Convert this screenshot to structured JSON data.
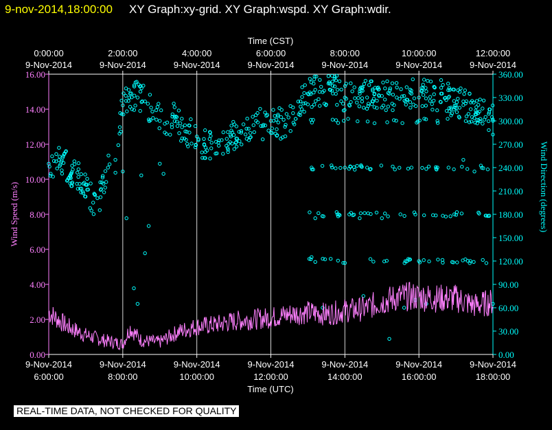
{
  "header": {
    "datetime": "9-nov-2014,18:00:00",
    "graphs": "XY Graph:xy-grid.  XY Graph:wspd.  XY Graph:wdir."
  },
  "notice": "REAL-TIME DATA, NOT CHECKED FOR QUALITY",
  "colors": {
    "background": "#000000",
    "speed": "#ff80ff",
    "direction": "#00ffff",
    "grid": "#ffffff",
    "header_date": "#ffff00"
  },
  "chart_data": {
    "type": "scatter",
    "title": "",
    "top_axis": {
      "title": "Time (CST)",
      "ticks": [
        {
          "x": 0,
          "time": "0:00:00",
          "date": "9-Nov-2014"
        },
        {
          "x": 2,
          "time": "2:00:00",
          "date": "9-Nov-2014"
        },
        {
          "x": 4,
          "time": "4:00:00",
          "date": "9-Nov-2014"
        },
        {
          "x": 6,
          "time": "6:00:00",
          "date": "9-Nov-2014"
        },
        {
          "x": 8,
          "time": "8:00:00",
          "date": "9-Nov-2014"
        },
        {
          "x": 10,
          "time": "10:00:00",
          "date": "9-Nov-2014"
        },
        {
          "x": 12,
          "time": "12:00:00",
          "date": "9-Nov-2014"
        }
      ]
    },
    "bottom_axis": {
      "title": "Time (UTC)",
      "ticks": [
        {
          "x": 0,
          "date": "9-Nov-2014",
          "time": "6:00:00"
        },
        {
          "x": 2,
          "date": "9-Nov-2014",
          "time": "8:00:00"
        },
        {
          "x": 4,
          "date": "9-Nov-2014",
          "time": "10:00:00"
        },
        {
          "x": 6,
          "date": "9-Nov-2014",
          "time": "12:00:00"
        },
        {
          "x": 8,
          "date": "9-Nov-2014",
          "time": "14:00:00"
        },
        {
          "x": 10,
          "date": "9-Nov-2014",
          "time": "16:00:00"
        },
        {
          "x": 12,
          "date": "9-Nov-2014",
          "time": "18:00:00"
        }
      ]
    },
    "xlim": [
      0,
      12
    ],
    "left_axis": {
      "title": "Wind Speed (m/s)",
      "ylim": [
        0,
        16
      ],
      "ticks": [
        "0.00",
        "2.00",
        "4.00",
        "6.00",
        "8.00",
        "10.00",
        "12.00",
        "14.00",
        "16.00"
      ]
    },
    "right_axis": {
      "title": "Wind Direction (degrees)",
      "ylim": [
        0,
        360
      ],
      "ticks": [
        "0.00",
        "30.00",
        "60.00",
        "90.00",
        "120.00",
        "150.00",
        "180.00",
        "210.00",
        "240.00",
        "270.00",
        "300.00",
        "330.00",
        "360.00"
      ]
    },
    "series": [
      {
        "name": "wspd",
        "kind": "line",
        "axis": "left",
        "x": [
          0,
          0.5,
          1,
          1.5,
          2,
          2.2,
          2.5,
          3,
          3.5,
          4,
          4.5,
          5,
          5.5,
          6,
          6.5,
          7,
          7.5,
          8,
          8.5,
          9,
          9.5,
          10,
          10.5,
          11,
          11.5,
          12
        ],
        "values": [
          2.4,
          1.6,
          1.1,
          0.8,
          0.6,
          1.5,
          0.8,
          0.7,
          1.3,
          1.6,
          1.7,
          1.9,
          2.0,
          2.1,
          2.3,
          2.4,
          2.3,
          2.5,
          2.6,
          3.0,
          3.3,
          3.3,
          3.2,
          3.2,
          2.8,
          3.0
        ]
      },
      {
        "name": "wdir",
        "kind": "scatter",
        "axis": "right",
        "x": [
          0,
          0.2,
          0.4,
          0.6,
          0.8,
          1.0,
          1.2,
          1.4,
          1.6,
          1.8,
          2.0,
          2.2,
          2.4,
          2.6,
          2.8,
          3.0,
          3.2,
          3.4,
          3.6,
          3.8,
          4.0,
          4.2,
          4.4,
          4.6,
          4.8,
          5.0,
          5.2,
          5.4,
          5.6,
          5.8,
          6.0,
          6.2,
          6.4,
          6.6,
          6.8,
          7.0,
          7.2,
          7.4,
          7.6,
          7.8,
          8.0,
          8.2,
          8.4,
          8.6,
          8.8,
          9.0,
          9.2,
          9.4,
          9.6,
          9.8,
          10.0,
          10.2,
          10.4,
          10.6,
          10.8,
          11.0,
          11.2,
          11.4,
          11.6,
          11.8,
          12.0
        ],
        "values": [
          245,
          248,
          246,
          232,
          228,
          218,
          195,
          202,
          240,
          250,
          320,
          335,
          330,
          325,
          312,
          300,
          298,
          305,
          292,
          285,
          280,
          270,
          272,
          275,
          268,
          282,
          287,
          290,
          300,
          295,
          300,
          298,
          295,
          310,
          325,
          335,
          340,
          337,
          340,
          340,
          330,
          338,
          338,
          330,
          335,
          332,
          335,
          330,
          332,
          335,
          330,
          338,
          326,
          335,
          330,
          320,
          325,
          315,
          310,
          305,
          300
        ],
        "outliers": [
          {
            "x": 2.1,
            "y": 175
          },
          {
            "x": 2.3,
            "y": 85
          },
          {
            "x": 2.4,
            "y": 65
          },
          {
            "x": 2.6,
            "y": 130
          },
          {
            "x": 2.7,
            "y": 165
          },
          {
            "x": 2.5,
            "y": 230
          },
          {
            "x": 2.0,
            "y": 235
          },
          {
            "x": 3.0,
            "y": 245
          },
          {
            "x": 3.1,
            "y": 232
          },
          {
            "x": 7.1,
            "y": 240
          },
          {
            "x": 7.2,
            "y": 175
          },
          {
            "x": 7.1,
            "y": 125
          },
          {
            "x": 7.8,
            "y": 180
          },
          {
            "x": 8.0,
            "y": 240
          },
          {
            "x": 8.4,
            "y": 175
          },
          {
            "x": 8.6,
            "y": 240
          },
          {
            "x": 9.0,
            "y": 175
          },
          {
            "x": 9.5,
            "y": 180
          },
          {
            "x": 10.0,
            "y": 120
          },
          {
            "x": 9.8,
            "y": 240
          },
          {
            "x": 10.5,
            "y": 300
          },
          {
            "x": 10.8,
            "y": 240
          },
          {
            "x": 11.2,
            "y": 250
          },
          {
            "x": 11.5,
            "y": 235
          },
          {
            "x": 7.4,
            "y": 60
          },
          {
            "x": 8.5,
            "y": 75
          },
          {
            "x": 9.2,
            "y": 20
          },
          {
            "x": 9.6,
            "y": 60
          },
          {
            "x": 9.9,
            "y": 70
          },
          {
            "x": 10.2,
            "y": 65
          },
          {
            "x": 11.9,
            "y": 178
          },
          {
            "x": 12.0,
            "y": 65
          }
        ]
      }
    ]
  }
}
